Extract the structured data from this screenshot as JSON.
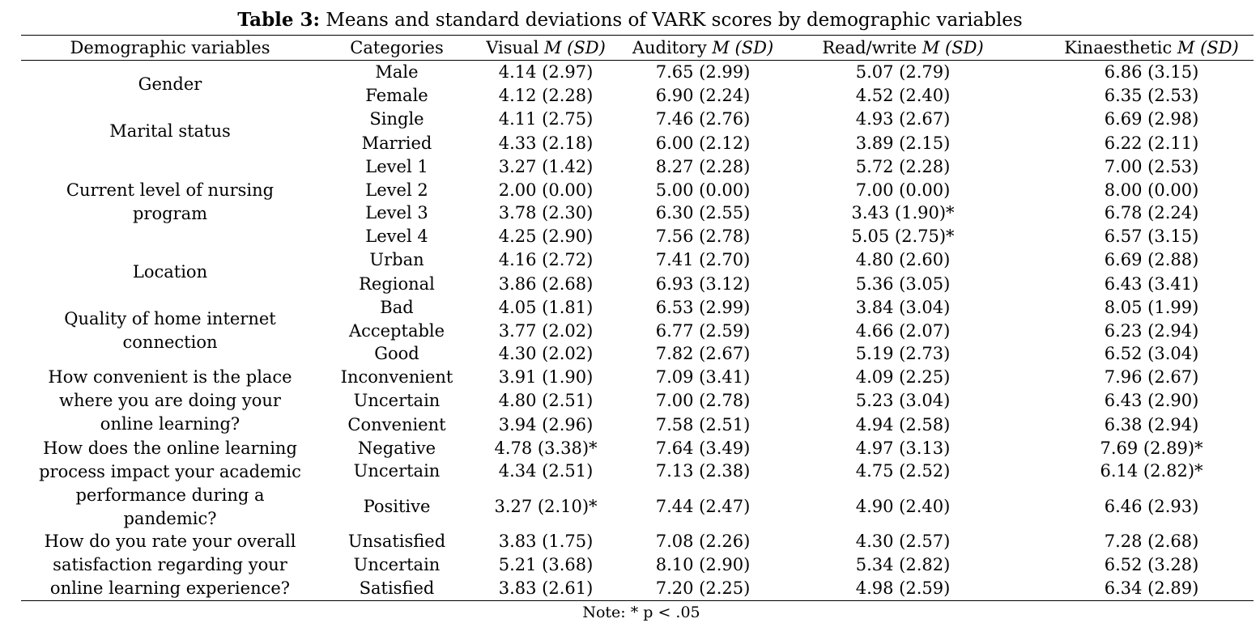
{
  "table": {
    "caption_bold": "Table 3:",
    "caption_rest": " Means and standard deviations of VARK scores by demographic variables",
    "headers": [
      {
        "main": "Demographic variables",
        "ital": ""
      },
      {
        "main": "Categories",
        "ital": ""
      },
      {
        "main": "Visual ",
        "ital": "M (SD)"
      },
      {
        "main": "Auditory ",
        "ital": "M (SD)"
      },
      {
        "main": "Read/write ",
        "ital": "M (SD)"
      },
      {
        "main": "Kinaesthetic ",
        "ital": "M (SD)"
      }
    ],
    "groups": [
      {
        "lines": [
          "Gender"
        ]
      },
      {
        "lines": [
          "Marital status"
        ]
      },
      {
        "lines": [
          "Current level of nursing",
          "program"
        ]
      },
      {
        "lines": [
          "Location"
        ]
      },
      {
        "lines": [
          "Quality of home internet",
          "connection"
        ]
      },
      {
        "lines": [
          "How convenient is the place",
          "where you are doing your",
          "online learning?"
        ]
      },
      {
        "lines": [
          "How does the online learning",
          "process impact your academic",
          "performance during a",
          "pandemic?"
        ]
      },
      {
        "lines": [
          "How do you rate your overall",
          "satisfaction regarding your",
          "online learning experience?"
        ]
      }
    ],
    "rows": [
      {
        "category": "Male",
        "visual": "4.14 (2.97)",
        "auditory": "7.65 (2.99)",
        "readwrite": "5.07 (2.79)",
        "kinaesthetic": "6.86 (3.15)"
      },
      {
        "category": "Female",
        "visual": "4.12 (2.28)",
        "auditory": "6.90 (2.24)",
        "readwrite": "4.52 (2.40)",
        "kinaesthetic": "6.35 (2.53)"
      },
      {
        "category": "Single",
        "visual": "4.11 (2.75)",
        "auditory": "7.46 (2.76)",
        "readwrite": "4.93 (2.67)",
        "kinaesthetic": "6.69 (2.98)"
      },
      {
        "category": "Married",
        "visual": "4.33 (2.18)",
        "auditory": "6.00 (2.12)",
        "readwrite": "3.89 (2.15)",
        "kinaesthetic": "6.22 (2.11)"
      },
      {
        "category": "Level 1",
        "visual": "3.27 (1.42)",
        "auditory": "8.27 (2.28)",
        "readwrite": "5.72 (2.28)",
        "kinaesthetic": "7.00 (2.53)"
      },
      {
        "category": "Level 2",
        "visual": "2.00 (0.00)",
        "auditory": "5.00 (0.00)",
        "readwrite": "7.00 (0.00)",
        "kinaesthetic": "8.00 (0.00)"
      },
      {
        "category": "Level 3",
        "visual": "3.78 (2.30)",
        "auditory": "6.30 (2.55)",
        "readwrite": "3.43 (1.90)*",
        "kinaesthetic": "6.78 (2.24)"
      },
      {
        "category": "Level 4",
        "visual": "4.25 (2.90)",
        "auditory": "7.56 (2.78)",
        "readwrite": "5.05 (2.75)*",
        "kinaesthetic": "6.57 (3.15)"
      },
      {
        "category": "Urban",
        "visual": "4.16 (2.72)",
        "auditory": "7.41 (2.70)",
        "readwrite": "4.80 (2.60)",
        "kinaesthetic": "6.69 (2.88)"
      },
      {
        "category": "Regional",
        "visual": "3.86 (2.68)",
        "auditory": "6.93 (3.12)",
        "readwrite": "5.36 (3.05)",
        "kinaesthetic": "6.43 (3.41)"
      },
      {
        "category": "Bad",
        "visual": "4.05 (1.81)",
        "auditory": "6.53 (2.99)",
        "readwrite": "3.84 (3.04)",
        "kinaesthetic": "8.05 (1.99)"
      },
      {
        "category": "Acceptable",
        "visual": "3.77 (2.02)",
        "auditory": "6.77 (2.59)",
        "readwrite": "4.66 (2.07)",
        "kinaesthetic": "6.23 (2.94)"
      },
      {
        "category": "Good",
        "visual": "4.30 (2.02)",
        "auditory": "7.82 (2.67)",
        "readwrite": "5.19 (2.73)",
        "kinaesthetic": "6.52 (3.04)"
      },
      {
        "category": "Inconvenient",
        "visual": "3.91 (1.90)",
        "auditory": "7.09 (3.41)",
        "readwrite": "4.09 (2.25)",
        "kinaesthetic": "7.96 (2.67)"
      },
      {
        "category": "Uncertain",
        "visual": "4.80 (2.51)",
        "auditory": "7.00 (2.78)",
        "readwrite": "5.23 (3.04)",
        "kinaesthetic": "6.43 (2.90)"
      },
      {
        "category": "Convenient",
        "visual": "3.94 (2.96)",
        "auditory": "7.58 (2.51)",
        "readwrite": "4.94 (2.58)",
        "kinaesthetic": "6.38 (2.94)"
      },
      {
        "category": "Negative",
        "visual": "4.78 (3.38)*",
        "auditory": "7.64 (3.49)",
        "readwrite": "4.97 (3.13)",
        "kinaesthetic": "7.69 (2.89)*"
      },
      {
        "category": "Uncertain",
        "visual": "4.34 (2.51)",
        "auditory": "7.13 (2.38)",
        "readwrite": "4.75 (2.52)",
        "kinaesthetic": "6.14 (2.82)*"
      },
      {
        "category": "Positive",
        "visual": "3.27 (2.10)*",
        "auditory": "7.44 (2.47)",
        "readwrite": "4.90 (2.40)",
        "kinaesthetic": "6.46 (2.93)"
      },
      {
        "category": "Unsatisfied",
        "visual": "3.83 (1.75)",
        "auditory": "7.08 (2.26)",
        "readwrite": "4.30 (2.57)",
        "kinaesthetic": "7.28 (2.68)"
      },
      {
        "category": "Uncertain",
        "visual": "5.21 (3.68)",
        "auditory": "8.10 (2.90)",
        "readwrite": "5.34 (2.82)",
        "kinaesthetic": "6.52 (3.28)"
      },
      {
        "category": "Satisfied",
        "visual": "3.83 (2.61)",
        "auditory": "7.20 (2.25)",
        "readwrite": "4.98 (2.59)",
        "kinaesthetic": "6.34 (2.89)"
      }
    ],
    "note": "Note: * p < .05"
  }
}
